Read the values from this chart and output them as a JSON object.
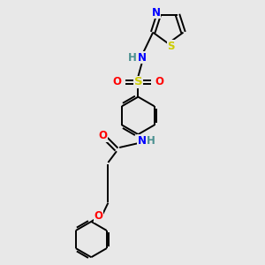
{
  "bg_color": "#e8e8e8",
  "bond_color": "#000000",
  "colors": {
    "N": "#0000ff",
    "O": "#ff0000",
    "S_sulfonyl": "#cccc00",
    "S_thiazole": "#cccc00",
    "H": "#4a9090",
    "C": "#000000"
  },
  "lw": 1.4,
  "fontsize": 8.5,
  "dbo": 0.09
}
